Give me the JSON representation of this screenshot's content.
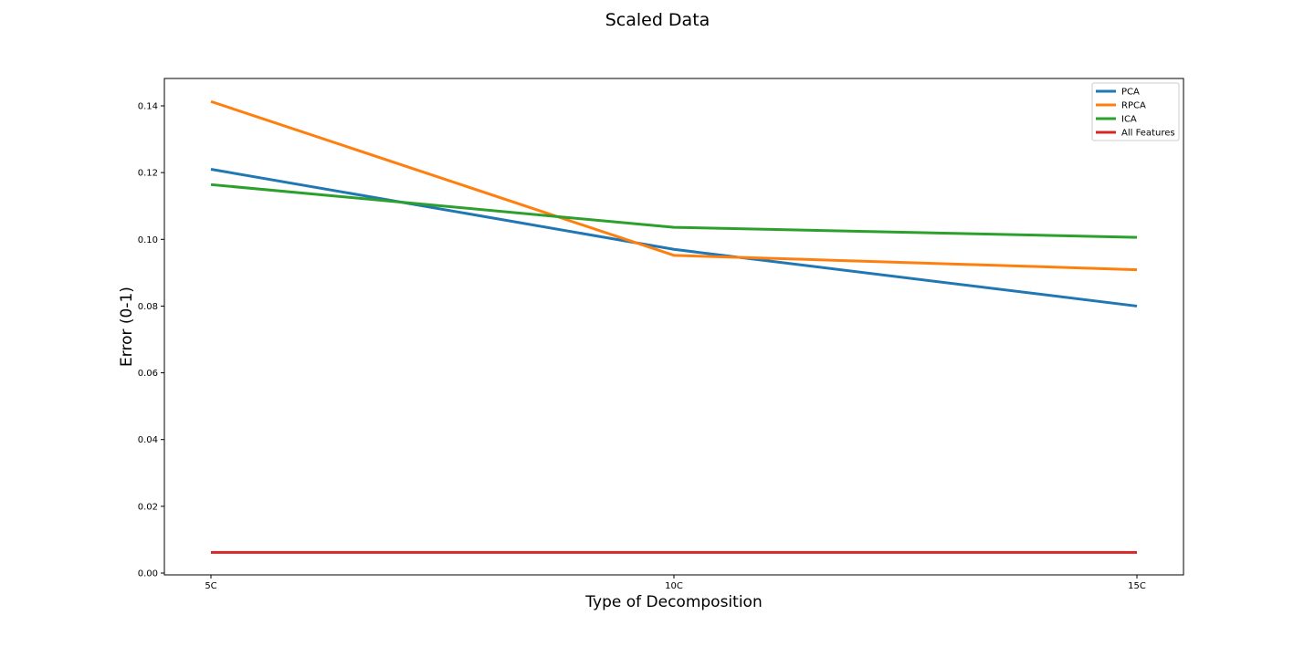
{
  "chart_data": {
    "type": "line",
    "title": "Scaled Data",
    "xlabel": "Type of Decomposition",
    "ylabel": "Error (0-1)",
    "categories": [
      "5C",
      "10C",
      "15C"
    ],
    "ylim": [
      0.0,
      0.148
    ],
    "yticks": [
      "0.00",
      "0.02",
      "0.04",
      "0.06",
      "0.08",
      "0.10",
      "0.12",
      "0.14"
    ],
    "grid": false,
    "legend_position": "top-right",
    "series": [
      {
        "name": "PCA",
        "color": "#1f77b4",
        "values": [
          0.121,
          0.097,
          0.08
        ]
      },
      {
        "name": "RPCA",
        "color": "#ff7f0e",
        "values": [
          0.1413,
          0.0952,
          0.0909
        ]
      },
      {
        "name": "ICA",
        "color": "#2ca02c",
        "values": [
          0.1164,
          0.1036,
          0.1006
        ]
      },
      {
        "name": "All Features",
        "color": "#d62728",
        "values": [
          0.0062,
          0.0062,
          0.0062
        ]
      }
    ]
  }
}
